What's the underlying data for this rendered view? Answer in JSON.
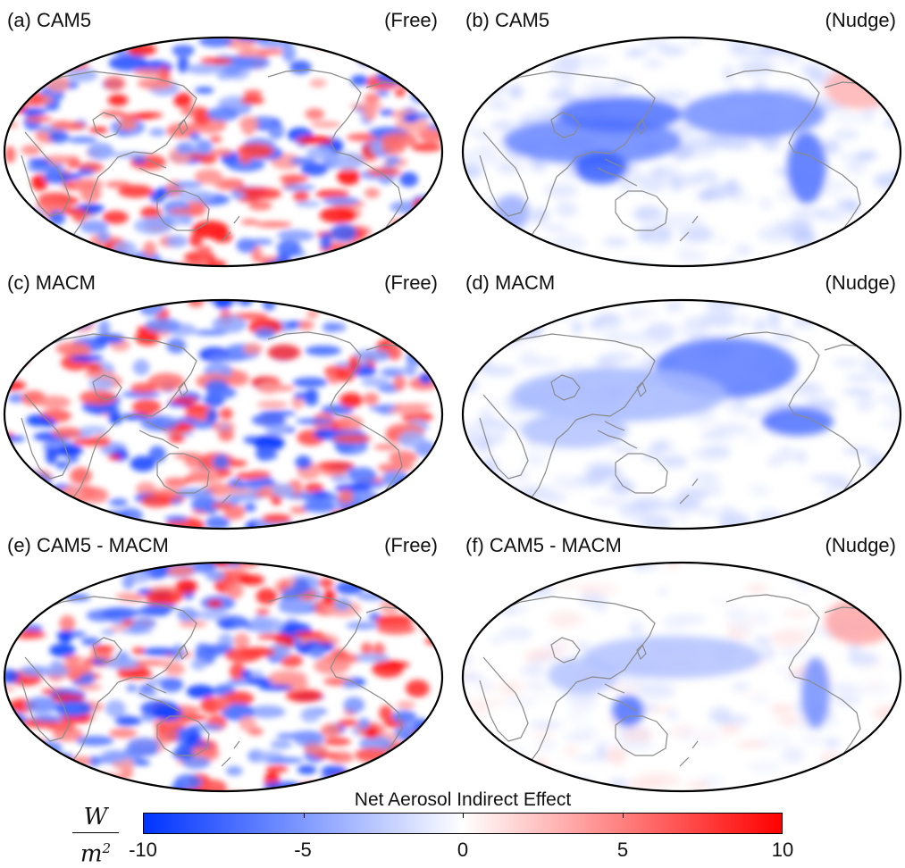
{
  "panels": [
    {
      "title": "(a) CAM5",
      "mode": "(Free)",
      "model": "CAM5",
      "run": "free",
      "variant": "a"
    },
    {
      "title": "(b) CAM5",
      "mode": "(Nudge)",
      "model": "CAM5",
      "run": "nudge",
      "variant": "b"
    },
    {
      "title": "(c) MACM",
      "mode": "(Free)",
      "model": "MACM",
      "run": "free",
      "variant": "c"
    },
    {
      "title": "(d) MACM",
      "mode": "(Nudge)",
      "model": "MACM",
      "run": "nudge",
      "variant": "d"
    },
    {
      "title": "(e) CAM5 - MACM",
      "mode": "(Free)",
      "model": "CAM5 - MACM",
      "run": "free",
      "variant": "e"
    },
    {
      "title": "(f) CAM5 - MACM",
      "mode": "(Nudge)",
      "model": "CAM5 - MACM",
      "run": "nudge",
      "variant": "f"
    }
  ],
  "colorbar": {
    "title": "Net Aerosol Indirect Effect",
    "units_numerator": "W",
    "units_denominator": "m",
    "units_exponent": "2",
    "range": [
      -10,
      10
    ],
    "tick_values": [
      -10,
      -5,
      0,
      5,
      10
    ],
    "tick_labels": [
      "-10",
      "-5",
      "0",
      "5",
      "10"
    ],
    "colors": {
      "negative": "#0033ff",
      "zero": "#ffffff",
      "positive": "#ff0000"
    }
  },
  "map": {
    "projection": "Robinson",
    "center": "Pacific",
    "coastline_color": "#8a8a8a",
    "frame_color": "#000000"
  }
}
